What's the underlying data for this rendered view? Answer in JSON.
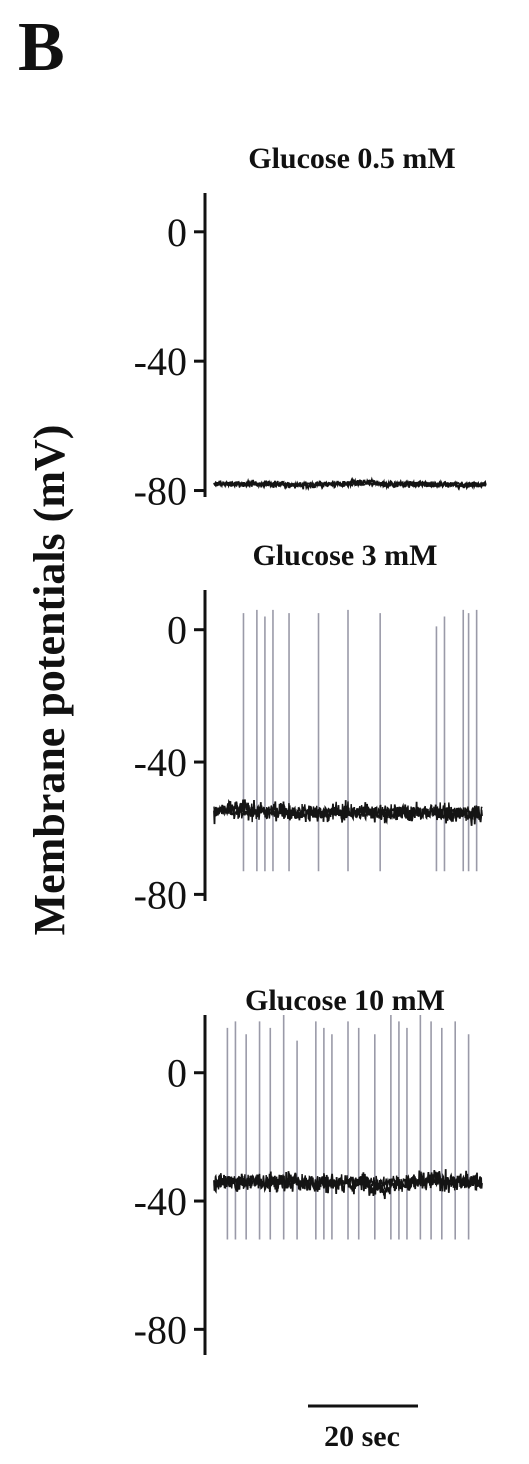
{
  "figure": {
    "panel_label": "B",
    "ylabel": "Membrane potentials (mV)",
    "scale_bar_label": "20 sec"
  },
  "colors": {
    "trace": "#141414",
    "spike": "#9a9aa8",
    "axis": "#111111",
    "background": "#ffffff"
  },
  "chart_data": [
    {
      "type": "line",
      "title": "Glucose 0.5 mM",
      "ylim": [
        -82,
        12
      ],
      "yticks": [
        0,
        -40,
        -80
      ],
      "ytick_labels": [
        "0",
        "-40",
        "-80"
      ],
      "baseline_mV": -78,
      "noise_mV": 1.6,
      "spikes": []
    },
    {
      "type": "line",
      "title": "Glucose 3 mM",
      "ylim": [
        -82,
        12
      ],
      "yticks": [
        0,
        -40,
        -80
      ],
      "ytick_labels": [
        "0",
        "-40",
        "-80"
      ],
      "baseline_mV": -55,
      "noise_mV": 4.5,
      "spikes": [
        {
          "t": 0.11,
          "peak": 5
        },
        {
          "t": 0.16,
          "peak": 6
        },
        {
          "t": 0.19,
          "peak": 4
        },
        {
          "t": 0.22,
          "peak": 6
        },
        {
          "t": 0.28,
          "peak": 5
        },
        {
          "t": 0.39,
          "peak": 5
        },
        {
          "t": 0.5,
          "peak": 6
        },
        {
          "t": 0.62,
          "peak": 5
        },
        {
          "t": 0.83,
          "peak": 1
        },
        {
          "t": 0.86,
          "peak": 4
        },
        {
          "t": 0.93,
          "peak": 6
        },
        {
          "t": 0.95,
          "peak": 5
        },
        {
          "t": 0.98,
          "peak": 6
        }
      ]
    },
    {
      "type": "line",
      "title": "Glucose 10 mM",
      "ylim": [
        -88,
        18
      ],
      "yticks": [
        0,
        -40,
        -80
      ],
      "ytick_labels": [
        "0",
        "-40",
        "-80"
      ],
      "baseline_mV": -34,
      "noise_mV": 5,
      "spikes": [
        {
          "t": 0.05,
          "peak": 14
        },
        {
          "t": 0.08,
          "peak": 16
        },
        {
          "t": 0.12,
          "peak": 12
        },
        {
          "t": 0.17,
          "peak": 16
        },
        {
          "t": 0.21,
          "peak": 14
        },
        {
          "t": 0.26,
          "peak": 18
        },
        {
          "t": 0.31,
          "peak": 10
        },
        {
          "t": 0.38,
          "peak": 16
        },
        {
          "t": 0.41,
          "peak": 14
        },
        {
          "t": 0.44,
          "peak": 12
        },
        {
          "t": 0.5,
          "peak": 16
        },
        {
          "t": 0.54,
          "peak": 14
        },
        {
          "t": 0.6,
          "peak": 12
        },
        {
          "t": 0.66,
          "peak": 18
        },
        {
          "t": 0.69,
          "peak": 16
        },
        {
          "t": 0.72,
          "peak": 14
        },
        {
          "t": 0.77,
          "peak": 18
        },
        {
          "t": 0.81,
          "peak": 16
        },
        {
          "t": 0.85,
          "peak": 14
        },
        {
          "t": 0.9,
          "peak": 16
        },
        {
          "t": 0.95,
          "peak": 12
        }
      ]
    }
  ]
}
